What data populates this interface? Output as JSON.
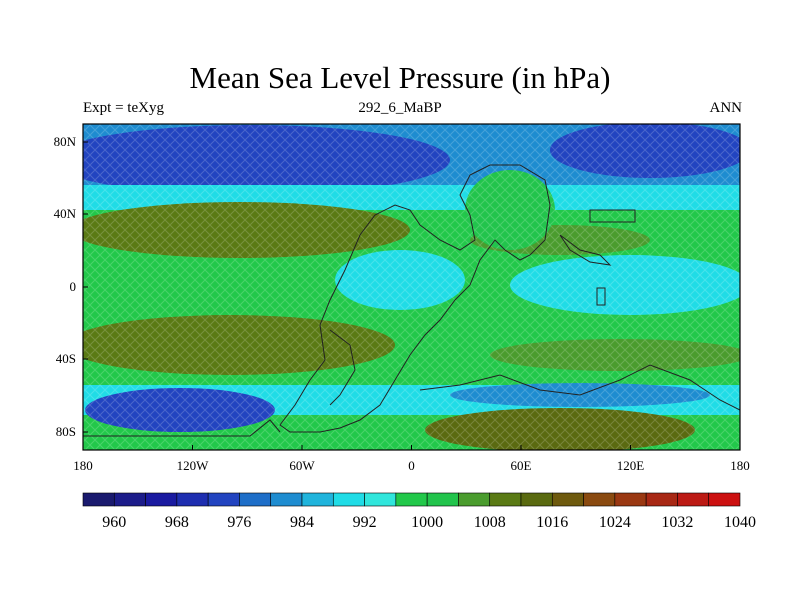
{
  "title": "Mean Sea Level Pressure (in hPa)",
  "subtitle_left": "Expt = teXyg",
  "subtitle_center": "292_6_MaBP",
  "subtitle_right": "ANN",
  "axes": {
    "x_ticks": [
      "180",
      "120W",
      "60W",
      "0",
      "60E",
      "120E",
      "180"
    ],
    "y_ticks": [
      "80N",
      "40N",
      "0",
      "40S",
      "80S"
    ]
  },
  "colorbar": {
    "labels": [
      "960",
      "968",
      "976",
      "984",
      "992",
      "1000",
      "1008",
      "1016",
      "1024",
      "1032",
      "1040"
    ],
    "colors": [
      "#1a1a6e",
      "#1c1c8a",
      "#1a1aa0",
      "#1e2eb0",
      "#2244c0",
      "#1e6ec8",
      "#1e8cd0",
      "#20b4dc",
      "#20dce6",
      "#30e6dc",
      "#22c84a",
      "#22c44c",
      "#4a9c2e",
      "#5a7a14",
      "#5a6a10",
      "#6e5a0e",
      "#8a4a10",
      "#9a3812",
      "#a82814",
      "#bc1a14",
      "#cc1010"
    ]
  },
  "chart_data": {
    "type": "heatmap",
    "title": "Mean Sea Level Pressure (in hPa)",
    "units": "hPa",
    "xlim": [
      -180,
      180
    ],
    "ylim": [
      -90,
      90
    ],
    "bands": [
      {
        "lat_range": [
          55,
          90
        ],
        "pressure_hPa": 1000
      },
      {
        "lat_range": [
          55,
          80
        ],
        "lon_range": [
          -160,
          -80
        ],
        "pressure_hPa": 990
      },
      {
        "lat_range": [
          25,
          45
        ],
        "lon_range": [
          -170,
          -60
        ],
        "pressure_hPa": 1018
      },
      {
        "lat_range": [
          -10,
          20
        ],
        "lon_range": [
          -20,
          20
        ],
        "pressure_hPa": 1006
      },
      {
        "lat_range": [
          -15,
          20
        ],
        "lon_range": [
          60,
          180
        ],
        "pressure_hPa": 1008
      },
      {
        "lat_range": [
          -45,
          -20
        ],
        "lon_range": [
          -170,
          -60
        ],
        "pressure_hPa": 1018
      },
      {
        "lat_range": [
          -80,
          -60
        ],
        "lon_range": [
          -170,
          -100
        ],
        "pressure_hPa": 990
      },
      {
        "lat_range": [
          -90,
          -70
        ],
        "lon_range": [
          20,
          140
        ],
        "pressure_hPa": 1018
      }
    ]
  }
}
